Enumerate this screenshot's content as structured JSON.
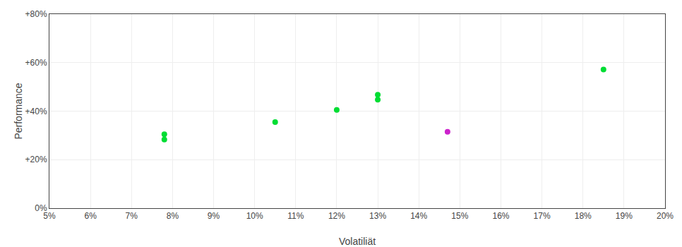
{
  "chart_data": {
    "type": "scatter",
    "xlabel": "Volatiliät",
    "ylabel": "Performance",
    "xlim": [
      0.05,
      0.2
    ],
    "ylim": [
      0.0,
      0.8
    ],
    "xticks": [
      {
        "value": 0.05,
        "label": "5%"
      },
      {
        "value": 0.06,
        "label": "6%"
      },
      {
        "value": 0.07,
        "label": "7%"
      },
      {
        "value": 0.08,
        "label": "8%"
      },
      {
        "value": 0.09,
        "label": "9%"
      },
      {
        "value": 0.1,
        "label": "10%"
      },
      {
        "value": 0.11,
        "label": "11%"
      },
      {
        "value": 0.12,
        "label": "12%"
      },
      {
        "value": 0.13,
        "label": "13%"
      },
      {
        "value": 0.14,
        "label": "14%"
      },
      {
        "value": 0.15,
        "label": "15%"
      },
      {
        "value": 0.16,
        "label": "16%"
      },
      {
        "value": 0.17,
        "label": "17%"
      },
      {
        "value": 0.18,
        "label": "18%"
      },
      {
        "value": 0.19,
        "label": "19%"
      },
      {
        "value": 0.2,
        "label": "20%"
      }
    ],
    "yticks": [
      {
        "value": 0.0,
        "label": "0%"
      },
      {
        "value": 0.2,
        "label": "+20%"
      },
      {
        "value": 0.4,
        "label": "+40%"
      },
      {
        "value": 0.6,
        "label": "+60%"
      },
      {
        "value": 0.8,
        "label": "+80%"
      }
    ],
    "grid": true,
    "marker": "circle",
    "series": [
      {
        "color": "#00dd33",
        "x": [
          0.078,
          0.078,
          0.105,
          0.12,
          0.13,
          0.13,
          0.185
        ],
        "values": [
          0.305,
          0.283,
          0.355,
          0.405,
          0.468,
          0.447,
          0.572
        ]
      },
      {
        "color": "#cc22cc",
        "x": [
          0.147
        ],
        "values": [
          0.315
        ]
      }
    ]
  }
}
